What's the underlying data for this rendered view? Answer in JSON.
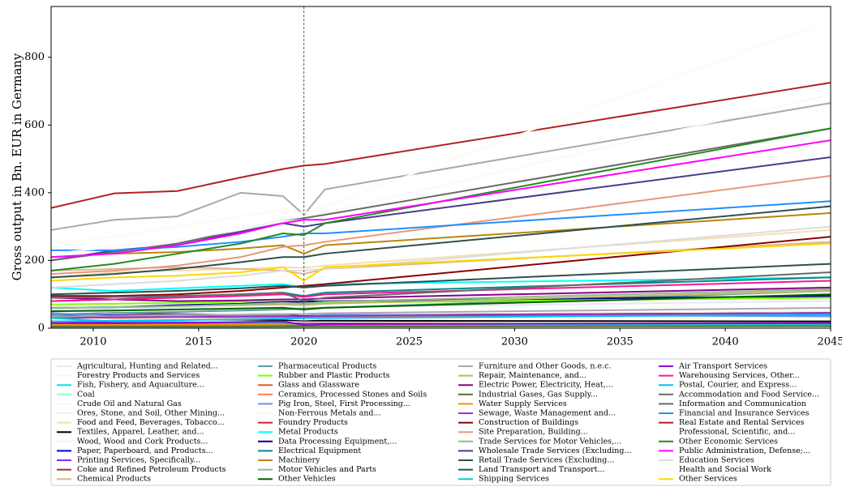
{
  "chart_data": {
    "type": "line",
    "ylabel": "Gross output in Bn. EUR in Germany",
    "x": [
      2008,
      2011,
      2014,
      2017,
      2019,
      2020,
      2021,
      2045
    ],
    "xlim": [
      2008,
      2045
    ],
    "ylim": [
      0,
      950
    ],
    "xticks": [
      2010,
      2015,
      2020,
      2025,
      2030,
      2035,
      2040,
      2045
    ],
    "yticks": [
      0,
      200,
      400,
      600,
      800
    ],
    "vline": 2020,
    "series": [
      {
        "name": "Agricultural, Hunting and Related...",
        "color": "#e6e6fa",
        "values": [
          55,
          58,
          60,
          60,
          62,
          60,
          62,
          80
        ]
      },
      {
        "name": "Forestry Products and Services",
        "color": "#fffacd",
        "values": [
          10,
          10,
          10,
          11,
          12,
          12,
          13,
          18
        ]
      },
      {
        "name": "Fish, Fishery, and Aquaculture...",
        "color": "#00e5ee",
        "values": [
          2,
          2,
          2,
          2,
          2,
          2,
          2,
          3
        ]
      },
      {
        "name": "Coal",
        "color": "#7fffd4",
        "values": [
          8,
          7,
          6,
          5,
          4,
          3,
          3,
          2
        ]
      },
      {
        "name": "Crude Oil and Natural Gas",
        "color": "#f0f8ff",
        "values": [
          8,
          7,
          6,
          5,
          5,
          4,
          4,
          3
        ]
      },
      {
        "name": "Ores, Stone, and Soil, Other Mining...",
        "color": "#faebd7",
        "values": [
          5,
          5,
          5,
          5,
          5,
          5,
          5,
          6
        ]
      },
      {
        "name": "Food and Feed, Beverages, Tobacco...",
        "color": "#f5deb3",
        "values": [
          150,
          165,
          170,
          175,
          180,
          178,
          185,
          290
        ]
      },
      {
        "name": "Textiles, Apparel, Leather, and...",
        "color": "#000000",
        "values": [
          30,
          28,
          25,
          25,
          24,
          22,
          22,
          20
        ]
      },
      {
        "name": "Wood, Wood and Cork Products...",
        "color": "#f5f5dc",
        "values": [
          30,
          28,
          30,
          32,
          35,
          35,
          38,
          50
        ]
      },
      {
        "name": "Paper, Paperboard, and Products...",
        "color": "#0000cd",
        "values": [
          40,
          38,
          38,
          38,
          38,
          36,
          38,
          45
        ]
      },
      {
        "name": "Printing Services, Specifically...",
        "color": "#8a2be2",
        "values": [
          20,
          18,
          17,
          16,
          15,
          14,
          14,
          10
        ]
      },
      {
        "name": "Coke and Refined Petroleum Products",
        "color": "#a52a2a",
        "values": [
          40,
          45,
          42,
          38,
          40,
          30,
          38,
          45
        ]
      },
      {
        "name": "Chemical Products",
        "color": "#deb887",
        "values": [
          170,
          175,
          180,
          175,
          170,
          160,
          175,
          255
        ]
      },
      {
        "name": "Pharmaceutical Products",
        "color": "#5f9ea0",
        "values": [
          40,
          45,
          48,
          52,
          55,
          58,
          60,
          110
        ]
      },
      {
        "name": "Rubber and Plastic Products",
        "color": "#7fff00",
        "values": [
          70,
          72,
          75,
          78,
          78,
          72,
          75,
          90
        ]
      },
      {
        "name": "Glass and Glassware",
        "color": "#d2691e",
        "values": [
          10,
          10,
          10,
          10,
          10,
          9,
          10,
          12
        ]
      },
      {
        "name": "Ceramics, Processed Stones and Soils",
        "color": "#ff7f50",
        "values": [
          30,
          28,
          30,
          32,
          33,
          32,
          33,
          40
        ]
      },
      {
        "name": "Pig Iron, Steel, First Processing...",
        "color": "#6495ed",
        "values": [
          45,
          35,
          40,
          38,
          38,
          32,
          40,
          35
        ]
      },
      {
        "name": "Non-Ferrous Metals and...",
        "color": "#fff8dc",
        "values": [
          30,
          25,
          28,
          27,
          28,
          25,
          28,
          30
        ]
      },
      {
        "name": "Foundry Products",
        "color": "#dc143c",
        "values": [
          15,
          14,
          15,
          15,
          15,
          13,
          14,
          12
        ]
      },
      {
        "name": "Metal Products",
        "color": "#00ffff",
        "values": [
          120,
          110,
          118,
          125,
          130,
          120,
          130,
          150
        ]
      },
      {
        "name": "Data Processing Equipment,...",
        "color": "#00008b",
        "values": [
          60,
          62,
          68,
          72,
          78,
          78,
          80,
          95
        ]
      },
      {
        "name": "Electrical Equipment",
        "color": "#008b8b",
        "values": [
          80,
          85,
          95,
          100,
          105,
          95,
          105,
          150
        ]
      },
      {
        "name": "Machinery",
        "color": "#b8860b",
        "values": [
          210,
          220,
          225,
          235,
          245,
          220,
          245,
          340
        ]
      },
      {
        "name": "Motor Vehicles and Parts",
        "color": "#a9a9a9",
        "values": [
          290,
          320,
          330,
          400,
          390,
          335,
          410,
          665
        ]
      },
      {
        "name": "Other Vehicles",
        "color": "#006400",
        "values": [
          50,
          52,
          55,
          58,
          60,
          55,
          60,
          100
        ]
      },
      {
        "name": "Furniture and Other Goods, n.e.c.",
        "color": "#a9a9a9",
        "values": [
          35,
          36,
          38,
          40,
          42,
          42,
          44,
          60
        ]
      },
      {
        "name": "Repair, Maintenance, and...",
        "color": "#bdb76b",
        "values": [
          60,
          62,
          65,
          68,
          70,
          68,
          72,
          110
        ]
      },
      {
        "name": "Electric Power, Electricity, Heat,...",
        "color": "#8b008b",
        "values": [
          90,
          85,
          80,
          82,
          85,
          85,
          88,
          120
        ]
      },
      {
        "name": "Industrial Gases, Gas Supply...",
        "color": "#556b2f",
        "values": [
          5,
          5,
          5,
          5,
          5,
          5,
          5,
          6
        ]
      },
      {
        "name": "Water Supply Services",
        "color": "#ff8c00",
        "values": [
          10,
          10,
          11,
          11,
          12,
          12,
          12,
          14
        ]
      },
      {
        "name": "Sewage, Waste Management and...",
        "color": "#9932cc",
        "values": [
          30,
          32,
          33,
          34,
          35,
          35,
          36,
          45
        ]
      },
      {
        "name": "Construction of Buildings",
        "color": "#8b0000",
        "values": [
          95,
          95,
          100,
          110,
          120,
          125,
          130,
          270
        ]
      },
      {
        "name": "Site Preparation, Building...",
        "color": "#e9967a",
        "values": [
          160,
          170,
          185,
          210,
          240,
          245,
          255,
          450
        ]
      },
      {
        "name": "Trade Services for Motor Vehicles,...",
        "color": "#8fbc8f",
        "values": [
          60,
          62,
          65,
          70,
          75,
          72,
          78,
          115
        ]
      },
      {
        "name": "Wholesale Trade Services (Excluding...",
        "color": "#483d8b",
        "values": [
          200,
          230,
          245,
          285,
          310,
          300,
          310,
          505
        ]
      },
      {
        "name": "Retail Trade Services (Excluding...",
        "color": "#2f4f4f",
        "values": [
          150,
          160,
          175,
          195,
          210,
          210,
          220,
          360
        ]
      },
      {
        "name": "Land Transport and Transport...",
        "color": "#2f4f4f",
        "values": [
          100,
          105,
          110,
          118,
          125,
          120,
          125,
          190
        ]
      },
      {
        "name": "Shipping Services",
        "color": "#00ced1",
        "values": [
          30,
          20,
          18,
          15,
          14,
          12,
          13,
          10
        ]
      },
      {
        "name": "Air Transport Services",
        "color": "#9400d3",
        "values": [
          15,
          15,
          16,
          18,
          20,
          10,
          12,
          15
        ]
      },
      {
        "name": "Warehousing Services, Other...",
        "color": "#ff1493",
        "values": [
          80,
          85,
          90,
          95,
          100,
          92,
          100,
          140
        ]
      },
      {
        "name": "Postal, Courier, and Express...",
        "color": "#00bfff",
        "values": [
          20,
          22,
          24,
          26,
          28,
          30,
          30,
          40
        ]
      },
      {
        "name": "Accommodation and Food Service...",
        "color": "#696969",
        "values": [
          90,
          92,
          95,
          100,
          105,
          80,
          90,
          165
        ]
      },
      {
        "name": "Information and Communication",
        "color": "#696969",
        "values": [
          200,
          225,
          250,
          290,
          320,
          325,
          335,
          590
        ]
      },
      {
        "name": "Financial and Insurance Services",
        "color": "#1e90ff",
        "values": [
          230,
          230,
          240,
          255,
          270,
          280,
          280,
          375
        ]
      },
      {
        "name": "Real Estate and Rental Services",
        "color": "#b22222",
        "values": [
          355,
          398,
          405,
          445,
          470,
          480,
          485,
          725
        ]
      },
      {
        "name": "Professional, Scientific, and...",
        "color": "#fffaf0",
        "values": [
          250,
          270,
          300,
          330,
          350,
          340,
          360,
          910
        ]
      },
      {
        "name": "Other Economic Services",
        "color": "#228b22",
        "values": [
          170,
          190,
          220,
          250,
          280,
          275,
          310,
          590
        ]
      },
      {
        "name": "Public Administration, Defense;...",
        "color": "#ff00ff",
        "values": [
          210,
          220,
          245,
          280,
          310,
          320,
          320,
          555
        ]
      },
      {
        "name": "Education Services",
        "color": "#dcdcdc",
        "values": [
          120,
          130,
          140,
          155,
          170,
          170,
          175,
          300
        ]
      },
      {
        "name": "Health and Social Work",
        "color": "#f8f8ff",
        "values": [
          220,
          240,
          260,
          290,
          320,
          330,
          340,
          690
        ]
      },
      {
        "name": "Other Services",
        "color": "#ffd700",
        "values": [
          140,
          150,
          155,
          165,
          180,
          140,
          180,
          250
        ]
      }
    ]
  }
}
